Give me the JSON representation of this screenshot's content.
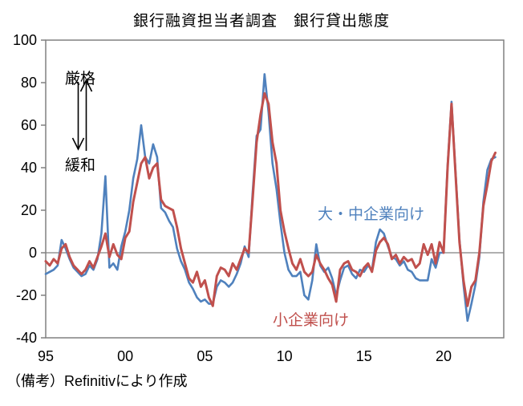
{
  "title": "銀行融資担当者調査　銀行貸出態度",
  "note": "（備考）Refinitivにより作成",
  "annotation": {
    "tighten": "厳格",
    "ease": "緩和"
  },
  "colors": {
    "large_medium_line": "#4F81BD",
    "small_line": "#C0504D",
    "zero_line": "#808080",
    "plot_border": "#808080",
    "text": "#000000"
  },
  "chart_data": {
    "type": "line",
    "title": "銀行融資担当者調査　銀行貸出態度",
    "xlabel": "",
    "ylabel": "",
    "ylim": [
      -40,
      100
    ],
    "y_ticks": [
      100,
      80,
      60,
      40,
      20,
      0,
      -20,
      -40
    ],
    "y_tick_labels": [
      "100",
      "80",
      "60",
      "40",
      "20",
      "0",
      "-20",
      "-40"
    ],
    "x_start_year": 1995,
    "x_step_years": 0.25,
    "x_end_quarter": "2023Q2",
    "x_tick_years": [
      1995,
      2000,
      2005,
      2010,
      2015,
      2020
    ],
    "x_tick_labels": [
      "95",
      "00",
      "05",
      "10",
      "15",
      "20"
    ],
    "grid": "zero-line-only",
    "legend_position": "inline-text-labels",
    "unit": "net percent of banks tightening (厳格) vs easing (緩和)",
    "series": [
      {
        "name": "大・中企業向け",
        "color": "#4F81BD",
        "values": [
          -10,
          -9,
          -8,
          -6,
          6,
          2,
          -3,
          -7,
          -9,
          -11,
          -10,
          -6,
          -8,
          -3,
          9,
          36,
          -7,
          -5,
          -8,
          3,
          10,
          20,
          35,
          44,
          60,
          45,
          42,
          51,
          45,
          21,
          19,
          15,
          12,
          2,
          -4,
          -8,
          -14,
          -17,
          -21,
          -23,
          -22,
          -24,
          -24,
          -16,
          -13,
          -14,
          -16,
          -14,
          -10,
          -5,
          3,
          -2,
          28,
          55,
          58,
          84,
          66,
          42,
          30,
          14,
          0,
          -8,
          -11,
          -11,
          -9,
          -20,
          -22,
          -13,
          4,
          -6,
          -9,
          -7,
          -12,
          -20,
          -13,
          -7,
          -6,
          -10,
          -12,
          -8,
          -9,
          -6,
          -8,
          5,
          11,
          9,
          3,
          -2,
          -3,
          -6,
          -4,
          -8,
          -9,
          -12,
          -13,
          -13,
          -13,
          -3,
          -7,
          0,
          0,
          41,
          71,
          38,
          6,
          -15,
          -32,
          -24,
          -15,
          -2,
          24,
          39,
          44,
          45
        ]
      },
      {
        "name": "小企業向け",
        "color": "#C0504D",
        "values": [
          -4,
          -6,
          -3,
          -5,
          2,
          4,
          -2,
          -6,
          -8,
          -10,
          -8,
          -4,
          -7,
          -2,
          3,
          9,
          -2,
          4,
          -1,
          -3,
          7,
          10,
          24,
          33,
          42,
          45,
          35,
          40,
          42,
          25,
          22,
          21,
          20,
          12,
          2,
          -5,
          -12,
          -14,
          -9,
          -16,
          -13,
          -21,
          -25,
          -11,
          -7,
          -8,
          -11,
          -5,
          -8,
          -3,
          2,
          0,
          25,
          52,
          65,
          75,
          70,
          52,
          42,
          20,
          10,
          2,
          -5,
          -8,
          -3,
          -9,
          -11,
          -9,
          -1,
          -5,
          -8,
          -12,
          -15,
          -23,
          -8,
          -5,
          -4,
          -8,
          -9,
          -11,
          -7,
          -5,
          -9,
          1,
          5,
          7,
          4,
          -3,
          -1,
          -5,
          -2,
          -4,
          -3,
          -7,
          -5,
          4,
          -1,
          4,
          -5,
          5,
          0,
          40,
          70,
          37,
          5,
          -13,
          -25,
          -16,
          -13,
          0,
          22,
          32,
          43,
          47
        ]
      }
    ]
  }
}
